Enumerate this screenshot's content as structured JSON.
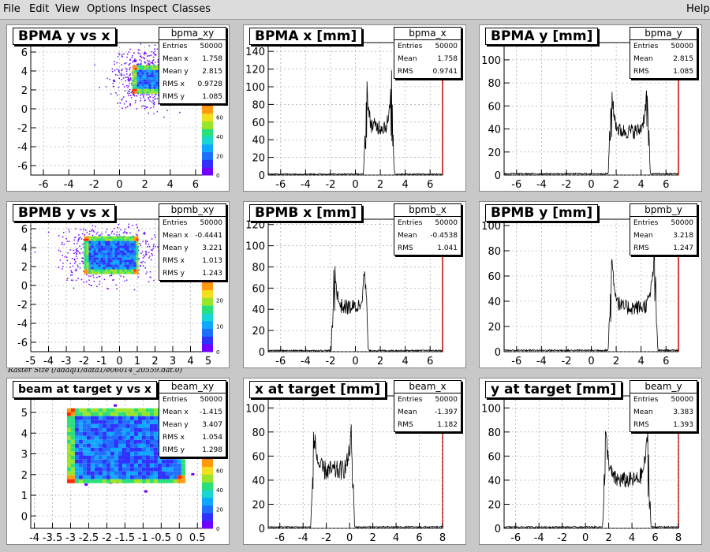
{
  "menubar": {
    "items": [
      "File",
      "Edit",
      "View",
      "Options",
      "Inspect",
      "Classes"
    ],
    "help": "Help"
  },
  "file_note": "Raster Size (/adaql1/data1/e06014_20559.dat.0)",
  "pads": [
    {
      "id": "bpma_xy",
      "title": "BPMA y vs x",
      "kind": "2d",
      "stats": {
        "name": "bpma_xy",
        "rows": [
          [
            "Entries",
            "50000"
          ],
          [
            "Mean x",
            "1.758"
          ],
          [
            "Mean y",
            "2.815"
          ],
          [
            "RMS x",
            "0.9728"
          ],
          [
            "RMS y",
            "1.085"
          ]
        ]
      },
      "chart_data": {
        "type": "heatmap",
        "xticks": [
          "-6",
          "-4",
          "-2",
          "0",
          "2",
          "4",
          "6"
        ],
        "yticks": [
          "6",
          "4",
          "2",
          "0",
          "-2",
          "-4",
          "-6"
        ],
        "xlim": [
          -7,
          7
        ],
        "ylim": [
          -7,
          7
        ],
        "box": [
          1,
          3.6,
          1.8,
          4.6
        ],
        "zticks": [
          "0",
          "20",
          "40",
          "60",
          "80"
        ]
      }
    },
    {
      "id": "bpma_x",
      "title": "BPMA x [mm]",
      "kind": "1d",
      "stats": {
        "name": "bpma_x",
        "rows": [
          [
            "Entries",
            "50000"
          ],
          [
            "Mean",
            "1.758"
          ],
          [
            "RMS",
            "0.9741"
          ]
        ]
      },
      "chart_data": {
        "type": "line",
        "xticks": [
          "-6",
          "-4",
          "-2",
          "0",
          "2",
          "4",
          "6"
        ],
        "yticks": [
          "140",
          "120",
          "100",
          "80",
          "60",
          "40",
          "20",
          "0"
        ],
        "xlim": [
          -7,
          7
        ],
        "ylim": [
          0,
          150
        ],
        "edges": [
          0.8,
          3.0
        ],
        "peak": 145,
        "valley": 55
      }
    },
    {
      "id": "bpma_y",
      "title": "BPMA y [mm]",
      "kind": "1d",
      "stats": {
        "name": "bpma_y",
        "rows": [
          [
            "Entries",
            "50000"
          ],
          [
            "Mean",
            "2.815"
          ],
          [
            "RMS",
            "1.085"
          ]
        ]
      },
      "chart_data": {
        "type": "line",
        "xticks": [
          "-6",
          "-4",
          "-2",
          "0",
          "2",
          "4",
          "6"
        ],
        "yticks": [
          "100",
          "80",
          "60",
          "40",
          "20",
          "0"
        ],
        "xlim": [
          -7,
          7
        ],
        "ylim": [
          0,
          115
        ],
        "edges": [
          1.5,
          4.6
        ],
        "peak": 100,
        "valley": 38
      }
    },
    {
      "id": "bpmb_xy",
      "title": "BPMB y vs x",
      "kind": "2d",
      "stats": {
        "name": "bpmb_xy",
        "rows": [
          [
            "Entries",
            "50000"
          ],
          [
            "Mean x",
            "-0.4441"
          ],
          [
            "Mean y",
            "3.221"
          ],
          [
            "RMS x",
            "1.013"
          ],
          [
            "RMS y",
            "1.243"
          ]
        ]
      },
      "chart_data": {
        "type": "heatmap",
        "xticks": [
          "-5",
          "-4",
          "-3",
          "-2",
          "-1",
          "0",
          "1",
          "2",
          "3",
          "4",
          "5"
        ],
        "yticks": [
          "6",
          "4",
          "2",
          "0",
          "-2",
          "-4",
          "-6"
        ],
        "xlim": [
          -5,
          5
        ],
        "ylim": [
          -7,
          7
        ],
        "box": [
          -2,
          1,
          1.4,
          5.2
        ],
        "zticks": [
          "0",
          "10",
          "20",
          "30"
        ]
      }
    },
    {
      "id": "bpmb_x",
      "title": "BPMB x [mm]",
      "kind": "1d",
      "stats": {
        "name": "bpmb_x",
        "rows": [
          [
            "Entries",
            "50000"
          ],
          [
            "Mean",
            "-0.4538"
          ],
          [
            "RMS",
            "1.041"
          ]
        ]
      },
      "chart_data": {
        "type": "line",
        "xticks": [
          "-6",
          "-4",
          "-2",
          "0",
          "2",
          "4",
          "6"
        ],
        "yticks": [
          "120",
          "100",
          "80",
          "60",
          "40",
          "20",
          "0"
        ],
        "xlim": [
          -7,
          7
        ],
        "ylim": [
          0,
          125
        ],
        "edges": [
          -1.8,
          0.9
        ],
        "peak": 118,
        "valley": 42
      }
    },
    {
      "id": "bpmb_y",
      "title": "BPMB y [mm]",
      "kind": "1d",
      "stats": {
        "name": "bpmb_y",
        "rows": [
          [
            "Entries",
            "50000"
          ],
          [
            "Mean",
            "3.218"
          ],
          [
            "RMS",
            "1.247"
          ]
        ]
      },
      "chart_data": {
        "type": "line",
        "xticks": [
          "-6",
          "-4",
          "-2",
          "0",
          "2",
          "4",
          "6"
        ],
        "yticks": [
          "100",
          "80",
          "60",
          "40",
          "20",
          "0"
        ],
        "xlim": [
          -7,
          7
        ],
        "ylim": [
          0,
          105
        ],
        "edges": [
          1.5,
          5.2
        ],
        "peak": 100,
        "valley": 35
      }
    },
    {
      "id": "beam_xy",
      "title": "beam at target y vs x",
      "kind": "2d",
      "stats": {
        "name": "beam_xy",
        "rows": [
          [
            "Entries",
            "50000"
          ],
          [
            "Mean x",
            "-1.415"
          ],
          [
            "Mean y",
            "3.407"
          ],
          [
            "RMS x",
            "1.054"
          ],
          [
            "RMS y",
            "1.298"
          ]
        ]
      },
      "chart_data": {
        "type": "heatmap",
        "xticks": [
          "-4",
          "-3.5",
          "-3",
          "-2.5",
          "-2",
          "-1.5",
          "-1",
          "-0.5",
          "0",
          "0.5"
        ],
        "yticks": [
          "5",
          "4",
          "3",
          "2",
          "1",
          "0"
        ],
        "xlim": [
          -4.1,
          0.8
        ],
        "ylim": [
          -0.6,
          5.8
        ],
        "box": [
          -3.1,
          0.1,
          1.6,
          5.2
        ],
        "zticks": [
          "0",
          "20",
          "40",
          "60",
          "80"
        ]
      }
    },
    {
      "id": "beam_x",
      "title": "x at target [mm]",
      "kind": "1d",
      "stats": {
        "name": "beam_x",
        "rows": [
          [
            "Entries",
            "50000"
          ],
          [
            "Mean",
            "-1.397"
          ],
          [
            "RMS",
            "1.182"
          ]
        ]
      },
      "chart_data": {
        "type": "line",
        "xticks": [
          "-6",
          "-4",
          "-2",
          "0",
          "2",
          "4",
          "6",
          "8"
        ],
        "yticks": [
          "100",
          "80",
          "60",
          "40",
          "20",
          "0"
        ],
        "xlim": [
          -7,
          8
        ],
        "ylim": [
          0,
          110
        ],
        "edges": [
          -3.2,
          0.3
        ],
        "peak": 102,
        "valley": 48
      }
    },
    {
      "id": "beam_y",
      "title": "y at target [mm]",
      "kind": "1d",
      "stats": {
        "name": "beam_y",
        "rows": [
          [
            "Entries",
            "50000"
          ],
          [
            "Mean",
            "3.383"
          ],
          [
            "RMS",
            "1.393"
          ]
        ]
      },
      "chart_data": {
        "type": "line",
        "xticks": [
          "-6",
          "-4",
          "-2",
          "0",
          "2",
          "4",
          "6",
          "8"
        ],
        "yticks": [
          "100",
          "80",
          "60",
          "40",
          "20",
          "0"
        ],
        "xlim": [
          -7,
          8
        ],
        "ylim": [
          0,
          110
        ],
        "edges": [
          1.6,
          5.5
        ],
        "peak": 102,
        "valley": 40
      }
    }
  ]
}
